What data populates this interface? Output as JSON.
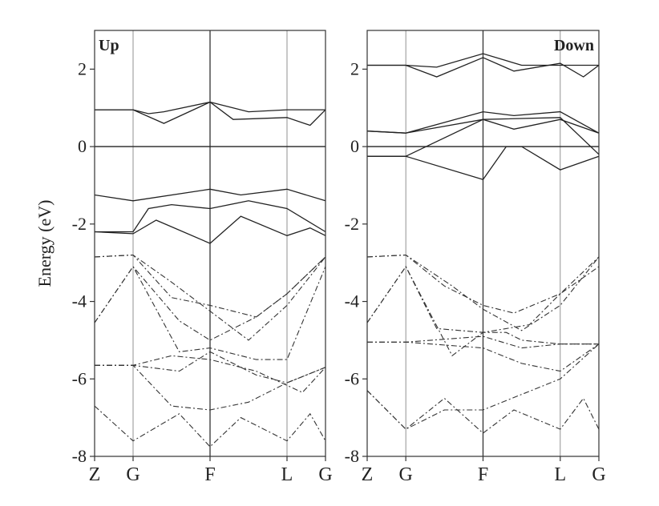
{
  "chart_data": {
    "type": "line",
    "ylabel": "Energy (eV)",
    "ylim": [
      -8,
      3
    ],
    "yticks": [
      2,
      0,
      -2,
      -4,
      -6,
      -8
    ],
    "kpoints": [
      "Z",
      "G",
      "F",
      "L",
      "G"
    ],
    "kpos": [
      0,
      0.5,
      1.5,
      2.5,
      3.0
    ],
    "panels": [
      {
        "label": "Up",
        "label_position": "top-left",
        "series": [
          {
            "style": "solid",
            "points": [
              [
                0,
                0.95
              ],
              [
                0.5,
                0.95
              ],
              [
                0.7,
                0.85
              ],
              [
                0.9,
                0.9
              ],
              [
                1.5,
                1.15
              ],
              [
                2.0,
                0.9
              ],
              [
                2.5,
                0.95
              ],
              [
                3.0,
                0.95
              ]
            ]
          },
          {
            "style": "solid",
            "points": [
              [
                0,
                0.95
              ],
              [
                0.5,
                0.95
              ],
              [
                0.9,
                0.6
              ],
              [
                1.5,
                1.15
              ],
              [
                1.8,
                0.7
              ],
              [
                2.5,
                0.75
              ],
              [
                2.8,
                0.55
              ],
              [
                3.0,
                0.95
              ]
            ]
          },
          {
            "style": "solid",
            "points": [
              [
                0,
                -1.25
              ],
              [
                0.5,
                -1.4
              ],
              [
                1.5,
                -1.1
              ],
              [
                1.9,
                -1.25
              ],
              [
                2.5,
                -1.1
              ],
              [
                3.0,
                -1.4
              ]
            ]
          },
          {
            "style": "solid",
            "points": [
              [
                0,
                -2.2
              ],
              [
                0.5,
                -2.2
              ],
              [
                0.7,
                -1.6
              ],
              [
                1.0,
                -1.5
              ],
              [
                1.5,
                -1.6
              ],
              [
                2.0,
                -1.4
              ],
              [
                2.5,
                -1.6
              ],
              [
                3.0,
                -2.2
              ]
            ]
          },
          {
            "style": "solid",
            "points": [
              [
                0,
                -2.2
              ],
              [
                0.5,
                -2.25
              ],
              [
                0.8,
                -1.9
              ],
              [
                1.5,
                -2.5
              ],
              [
                1.9,
                -1.8
              ],
              [
                2.5,
                -2.3
              ],
              [
                2.8,
                -2.1
              ],
              [
                3.0,
                -2.3
              ]
            ]
          },
          {
            "style": "dashed",
            "points": [
              [
                0,
                -2.85
              ],
              [
                0.5,
                -2.8
              ],
              [
                1.0,
                -3.9
              ],
              [
                1.5,
                -4.1
              ],
              [
                2.1,
                -4.4
              ],
              [
                2.5,
                -3.8
              ],
              [
                3.0,
                -2.85
              ]
            ]
          },
          {
            "style": "dashed",
            "points": [
              [
                0,
                -2.85
              ],
              [
                0.5,
                -2.8
              ],
              [
                1.0,
                -3.5
              ],
              [
                1.5,
                -4.25
              ],
              [
                2.0,
                -5.0
              ],
              [
                2.5,
                -4.1
              ],
              [
                3.0,
                -2.85
              ]
            ]
          },
          {
            "style": "dashed",
            "points": [
              [
                0,
                -4.55
              ],
              [
                0.5,
                -3.1
              ],
              [
                1.1,
                -4.5
              ],
              [
                1.5,
                -5.0
              ],
              [
                2.1,
                -4.4
              ],
              [
                2.5,
                -3.8
              ],
              [
                3.0,
                -2.85
              ]
            ]
          },
          {
            "style": "dashed",
            "points": [
              [
                0,
                -4.55
              ],
              [
                0.5,
                -3.1
              ],
              [
                1.1,
                -5.3
              ],
              [
                1.5,
                -5.2
              ],
              [
                2.1,
                -5.5
              ],
              [
                2.5,
                -5.5
              ],
              [
                3.0,
                -3.1
              ]
            ]
          },
          {
            "style": "dashed",
            "points": [
              [
                0,
                -5.65
              ],
              [
                0.5,
                -5.65
              ],
              [
                1.1,
                -5.8
              ],
              [
                1.5,
                -5.3
              ],
              [
                2.1,
                -5.9
              ],
              [
                2.5,
                -6.1
              ],
              [
                3.0,
                -5.7
              ]
            ]
          },
          {
            "style": "dashed",
            "points": [
              [
                0,
                -5.65
              ],
              [
                0.5,
                -5.65
              ],
              [
                1.0,
                -5.4
              ],
              [
                1.5,
                -5.5
              ],
              [
                2.1,
                -5.8
              ],
              [
                2.7,
                -6.35
              ],
              [
                3.0,
                -5.7
              ]
            ]
          },
          {
            "style": "dashed",
            "points": [
              [
                0,
                -5.65
              ],
              [
                0.5,
                -5.65
              ],
              [
                1.0,
                -6.7
              ],
              [
                1.5,
                -6.8
              ],
              [
                2.0,
                -6.6
              ],
              [
                2.5,
                -6.1
              ],
              [
                3.0,
                -5.7
              ]
            ]
          },
          {
            "style": "dashed",
            "points": [
              [
                0,
                -6.7
              ],
              [
                0.5,
                -7.6
              ],
              [
                1.1,
                -6.9
              ],
              [
                1.5,
                -7.75
              ],
              [
                1.9,
                -7.0
              ],
              [
                2.5,
                -7.6
              ],
              [
                2.8,
                -6.9
              ],
              [
                3.0,
                -7.6
              ]
            ]
          }
        ]
      },
      {
        "label": "Down",
        "label_position": "top-right",
        "series": [
          {
            "style": "solid",
            "points": [
              [
                0,
                2.1
              ],
              [
                0.5,
                2.1
              ],
              [
                0.9,
                2.05
              ],
              [
                1.5,
                2.4
              ],
              [
                2.0,
                2.1
              ],
              [
                2.5,
                2.1
              ],
              [
                3.0,
                2.1
              ]
            ]
          },
          {
            "style": "solid",
            "points": [
              [
                0,
                2.1
              ],
              [
                0.5,
                2.1
              ],
              [
                0.9,
                1.8
              ],
              [
                1.5,
                2.3
              ],
              [
                1.9,
                1.95
              ],
              [
                2.5,
                2.15
              ],
              [
                2.8,
                1.8
              ],
              [
                3.0,
                2.1
              ]
            ]
          },
          {
            "style": "solid",
            "points": [
              [
                0,
                0.4
              ],
              [
                0.5,
                0.35
              ],
              [
                1.5,
                0.9
              ],
              [
                1.9,
                0.8
              ],
              [
                2.5,
                0.9
              ],
              [
                3.0,
                0.35
              ]
            ]
          },
          {
            "style": "solid",
            "points": [
              [
                0,
                0.4
              ],
              [
                0.5,
                0.35
              ],
              [
                1.5,
                0.7
              ],
              [
                1.9,
                0.45
              ],
              [
                2.5,
                0.7
              ],
              [
                3.0,
                0.35
              ]
            ]
          },
          {
            "style": "solid",
            "points": [
              [
                0,
                -0.25
              ],
              [
                0.5,
                -0.25
              ],
              [
                1.5,
                0.7
              ],
              [
                2.5,
                0.75
              ],
              [
                3.0,
                -0.2
              ]
            ]
          },
          {
            "style": "solid",
            "points": [
              [
                0,
                -0.25
              ],
              [
                0.5,
                -0.25
              ],
              [
                1.5,
                -0.85
              ],
              [
                1.8,
                0.0
              ],
              [
                2.0,
                0.0
              ],
              [
                2.5,
                -0.6
              ],
              [
                3.0,
                -0.25
              ]
            ]
          },
          {
            "style": "dashed",
            "points": [
              [
                0,
                -2.85
              ],
              [
                0.5,
                -2.8
              ],
              [
                1.0,
                -3.6
              ],
              [
                1.5,
                -4.1
              ],
              [
                1.9,
                -4.3
              ],
              [
                2.5,
                -3.8
              ],
              [
                3.0,
                -2.85
              ]
            ]
          },
          {
            "style": "dashed",
            "points": [
              [
                0,
                -2.85
              ],
              [
                0.5,
                -2.8
              ],
              [
                1.1,
                -3.6
              ],
              [
                1.5,
                -4.2
              ],
              [
                2.0,
                -4.75
              ],
              [
                2.5,
                -4.1
              ],
              [
                3.0,
                -2.85
              ]
            ]
          },
          {
            "style": "dashed",
            "points": [
              [
                0,
                -4.55
              ],
              [
                0.5,
                -3.1
              ],
              [
                0.9,
                -4.7
              ],
              [
                1.5,
                -4.8
              ],
              [
                2.1,
                -4.6
              ],
              [
                2.5,
                -3.8
              ],
              [
                3.0,
                -3.1
              ]
            ]
          },
          {
            "style": "dashed",
            "points": [
              [
                0,
                -4.55
              ],
              [
                0.5,
                -3.1
              ],
              [
                1.1,
                -5.4
              ],
              [
                1.5,
                -4.8
              ],
              [
                1.8,
                -4.8
              ],
              [
                2.0,
                -5.0
              ],
              [
                2.5,
                -5.1
              ],
              [
                3.0,
                -5.1
              ]
            ]
          },
          {
            "style": "dashed",
            "points": [
              [
                0,
                -5.05
              ],
              [
                0.5,
                -5.05
              ],
              [
                1.5,
                -4.9
              ],
              [
                2.0,
                -5.2
              ],
              [
                2.5,
                -5.1
              ],
              [
                3.0,
                -5.1
              ]
            ]
          },
          {
            "style": "dashed",
            "points": [
              [
                0,
                -5.05
              ],
              [
                0.5,
                -5.05
              ],
              [
                1.5,
                -5.2
              ],
              [
                2.0,
                -5.6
              ],
              [
                2.5,
                -5.8
              ],
              [
                3.0,
                -5.1
              ]
            ]
          },
          {
            "style": "dashed",
            "points": [
              [
                0,
                -6.3
              ],
              [
                0.5,
                -7.3
              ],
              [
                1.0,
                -6.8
              ],
              [
                1.5,
                -6.8
              ],
              [
                2.0,
                -6.4
              ],
              [
                2.5,
                -6.0
              ],
              [
                3.0,
                -5.1
              ]
            ]
          },
          {
            "style": "dashed",
            "points": [
              [
                0,
                -6.3
              ],
              [
                0.5,
                -7.3
              ],
              [
                1.0,
                -6.5
              ],
              [
                1.5,
                -7.4
              ],
              [
                1.9,
                -6.8
              ],
              [
                2.5,
                -7.3
              ],
              [
                2.8,
                -6.5
              ],
              [
                3.0,
                -7.3
              ]
            ]
          }
        ]
      }
    ]
  }
}
